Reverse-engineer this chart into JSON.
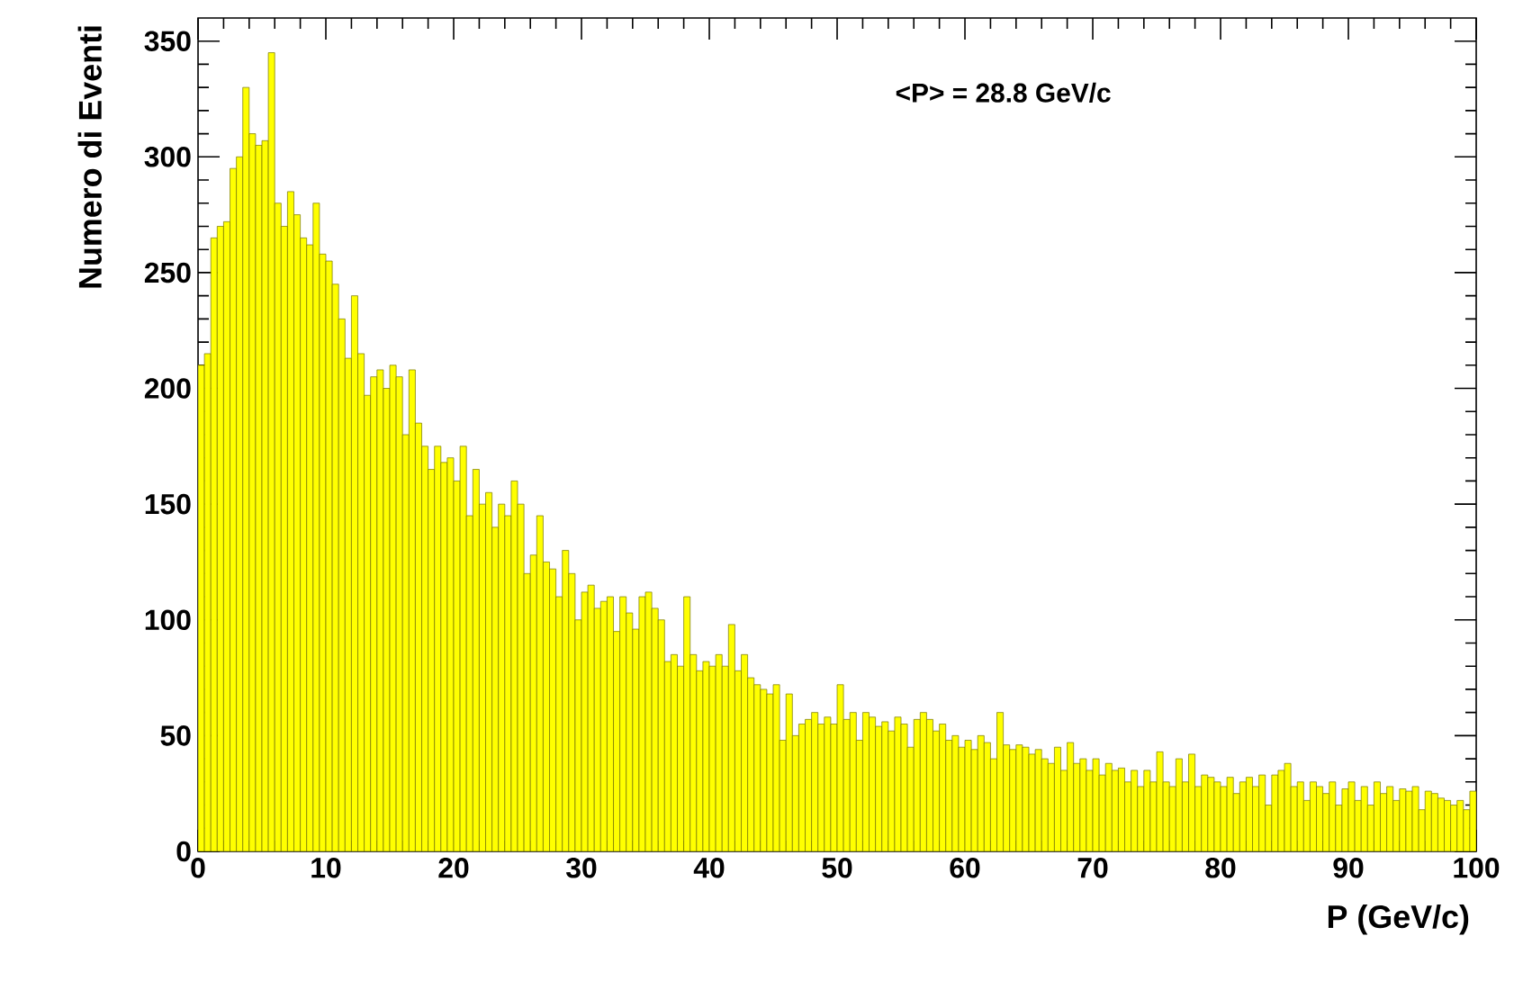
{
  "chart_data": {
    "type": "histogram",
    "xlabel": "P (GeV/c)",
    "ylabel": "Numero di Eventi",
    "annotations": [
      "<P> = 28.8 GeV/c"
    ],
    "color": "#ffff00",
    "xlim": [
      0,
      100
    ],
    "ylim": [
      0,
      360
    ],
    "xticks": [
      0,
      10,
      20,
      30,
      40,
      50,
      60,
      70,
      80,
      90,
      100
    ],
    "yticks": [
      0,
      50,
      100,
      150,
      200,
      250,
      300,
      350
    ],
    "bins": [
      0,
      0.5,
      1,
      1.5,
      2,
      2.5,
      3,
      3.5,
      4,
      4.5,
      5,
      5.5,
      6,
      6.5,
      7,
      7.5,
      8,
      8.5,
      9,
      9.5,
      10,
      10.5,
      11,
      11.5,
      12,
      12.5,
      13,
      13.5,
      14,
      14.5,
      15,
      15.5,
      16,
      16.5,
      17,
      17.5,
      18,
      18.5,
      19,
      19.5,
      20,
      20.5,
      21,
      21.5,
      22,
      22.5,
      23,
      23.5,
      24,
      24.5,
      25,
      25.5,
      26,
      26.5,
      27,
      27.5,
      28,
      28.5,
      29,
      29.5,
      30,
      30.5,
      31,
      31.5,
      32,
      32.5,
      33,
      33.5,
      34,
      34.5,
      35,
      35.5,
      36,
      36.5,
      37,
      37.5,
      38,
      38.5,
      39,
      39.5,
      40,
      40.5,
      41,
      41.5,
      42,
      42.5,
      43,
      43.5,
      44,
      44.5,
      45,
      45.5,
      46,
      46.5,
      47,
      47.5,
      48,
      48.5,
      49,
      49.5,
      50,
      50.5,
      51,
      51.5,
      52,
      52.5,
      53,
      53.5,
      54,
      54.5,
      55,
      55.5,
      56,
      56.5,
      57,
      57.5,
      58,
      58.5,
      59,
      59.5,
      60,
      60.5,
      61,
      61.5,
      62,
      62.5,
      63,
      63.5,
      64,
      64.5,
      65,
      65.5,
      66,
      66.5,
      67,
      67.5,
      68,
      68.5,
      69,
      69.5,
      70,
      70.5,
      71,
      71.5,
      72,
      72.5,
      73,
      73.5,
      74,
      74.5,
      75,
      75.5,
      76,
      76.5,
      77,
      77.5,
      78,
      78.5,
      79,
      79.5,
      80,
      80.5,
      81,
      81.5,
      82,
      82.5,
      83,
      83.5,
      84,
      84.5,
      85,
      85.5,
      86,
      86.5,
      87,
      87.5,
      88,
      88.5,
      89,
      89.5,
      90,
      90.5,
      91,
      91.5,
      92,
      92.5,
      93,
      93.5,
      94,
      94.5,
      95,
      95.5,
      96,
      96.5,
      97,
      97.5,
      98,
      98.5,
      99,
      99.5,
      100
    ],
    "values": [
      210,
      215,
      265,
      270,
      272,
      295,
      300,
      330,
      310,
      305,
      307,
      345,
      280,
      270,
      285,
      275,
      265,
      262,
      280,
      258,
      255,
      245,
      230,
      213,
      240,
      215,
      197,
      205,
      208,
      200,
      210,
      205,
      180,
      208,
      185,
      175,
      165,
      175,
      168,
      170,
      160,
      175,
      145,
      165,
      150,
      155,
      140,
      150,
      145,
      160,
      150,
      120,
      128,
      145,
      125,
      122,
      110,
      130,
      120,
      100,
      112,
      115,
      105,
      108,
      110,
      95,
      110,
      103,
      96,
      110,
      112,
      105,
      100,
      82,
      85,
      80,
      110,
      85,
      78,
      82,
      80,
      85,
      80,
      98,
      78,
      85,
      75,
      72,
      70,
      68,
      72,
      48,
      68,
      50,
      55,
      57,
      60,
      55,
      58,
      55,
      72,
      57,
      60,
      48,
      60,
      58,
      54,
      56,
      52,
      58,
      55,
      45,
      57,
      60,
      57,
      52,
      55,
      48,
      50,
      45,
      48,
      44,
      50,
      47,
      40,
      60,
      46,
      44,
      46,
      45,
      42,
      44,
      40,
      38,
      45,
      35,
      47,
      38,
      40,
      35,
      40,
      33,
      38,
      35,
      36,
      30,
      35,
      28,
      35,
      30,
      43,
      30,
      28,
      40,
      30,
      42,
      28,
      33,
      32,
      30,
      28,
      32,
      25,
      30,
      32,
      28,
      33,
      20,
      33,
      35,
      38,
      28,
      30,
      22,
      30,
      28,
      25,
      30,
      20,
      27,
      30,
      22,
      28,
      20,
      30,
      25,
      28,
      22,
      27,
      26,
      28,
      18,
      26,
      25,
      23,
      22,
      20,
      22,
      18,
      26
    ]
  }
}
